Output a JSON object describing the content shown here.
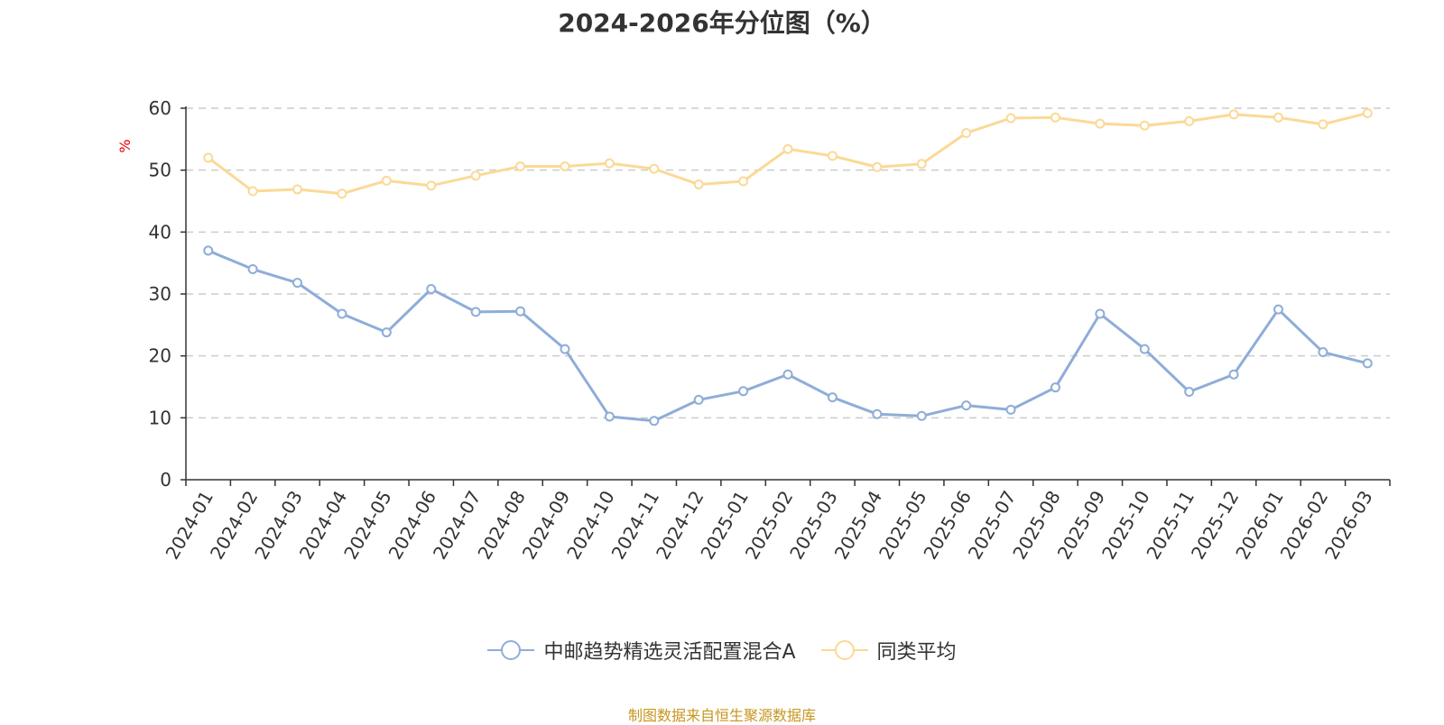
{
  "chart_data": {
    "type": "line",
    "title": "2024-2026年分位图（%）",
    "ylabel": "%",
    "xlabel": "",
    "ylim": [
      0,
      60
    ],
    "yticks": [
      0,
      10,
      20,
      30,
      40,
      50,
      60
    ],
    "grid": true,
    "legend_position": "bottom",
    "categories": [
      "2024-01",
      "2024-02",
      "2024-03",
      "2024-04",
      "2024-05",
      "2024-06",
      "2024-07",
      "2024-08",
      "2024-09",
      "2024-10",
      "2024-11",
      "2024-12",
      "2025-01",
      "2025-02",
      "2025-03",
      "2025-04",
      "2025-05",
      "2025-06",
      "2025-07",
      "2025-08",
      "2025-09",
      "2025-10",
      "2025-11",
      "2025-12",
      "2026-01",
      "2026-02",
      "2026-03"
    ],
    "series": [
      {
        "name": "中邮趋势精选灵活配置混合A",
        "color": "#8eadd8",
        "values": [
          37.0,
          34.0,
          31.8,
          26.8,
          23.8,
          30.8,
          27.1,
          27.2,
          21.1,
          10.2,
          9.5,
          12.9,
          14.3,
          17.0,
          13.3,
          10.6,
          10.3,
          12.0,
          11.3,
          14.9,
          26.8,
          21.1,
          14.2,
          17.0,
          27.5,
          20.6,
          18.8
        ]
      },
      {
        "name": "同类平均",
        "color": "#fbd996",
        "values": [
          52.0,
          46.6,
          46.9,
          46.2,
          48.3,
          47.5,
          49.1,
          50.6,
          50.6,
          51.1,
          50.2,
          47.7,
          48.2,
          53.4,
          52.3,
          50.5,
          51.0,
          56.0,
          58.4,
          58.5,
          57.5,
          57.2,
          57.9,
          59.0,
          58.5,
          57.4,
          59.2
        ]
      }
    ]
  },
  "footer": {
    "source": "制图数据来自恒生聚源数据库"
  }
}
